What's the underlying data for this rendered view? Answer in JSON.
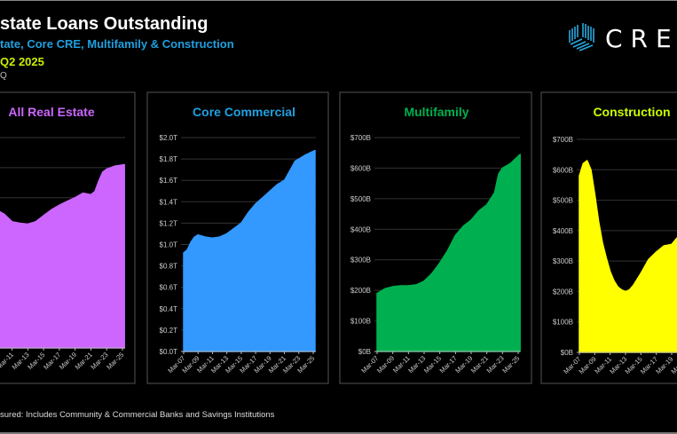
{
  "header": {
    "title": "state Loans Outstanding",
    "subtitle": "tate, Core CRE, Multifamily & Construction",
    "period": "Q2 2025",
    "source": "Q"
  },
  "logo": {
    "text": "CRED"
  },
  "footnote": "sured:  Includes Community & Commercial Banks and Savings Institutions",
  "colors": {
    "purple": "#cc66ff",
    "blue": "#3399ff",
    "green": "#00b050",
    "yellow": "#ffff00"
  },
  "chart_data": [
    {
      "type": "area",
      "title": "All Real Estate",
      "title_color": "#cc66ff",
      "fill": "#cc66ff",
      "ylabel": "",
      "ylim": [
        0,
        7
      ],
      "unit": "$T",
      "ytick_labels": [],
      "xtick_labels": [
        "Mar-07",
        "Mar-09",
        "Mar-11",
        "Mar-13",
        "Mar-15",
        "Mar-17",
        "Mar-19",
        "Mar-21",
        "Mar-23",
        "Mar-25"
      ],
      "x": [
        2007,
        2008,
        2009,
        2010,
        2011,
        2012,
        2013,
        2014,
        2015,
        2016,
        2017,
        2018,
        2019,
        2020,
        2021,
        2021.5,
        2022,
        2022.5,
        2023,
        2024,
        2025.25
      ],
      "values": [
        4.2,
        4.5,
        4.6,
        4.45,
        4.2,
        4.15,
        4.12,
        4.2,
        4.4,
        4.6,
        4.75,
        4.88,
        5.0,
        5.15,
        5.1,
        5.2,
        5.55,
        5.85,
        5.95,
        6.05,
        6.1
      ]
    },
    {
      "type": "area",
      "title": "Core Commercial",
      "title_color": "#1fa0e0",
      "fill": "#3399ff",
      "ylim": [
        0,
        2.0
      ],
      "unit": "$T",
      "ytick_labels": [
        "$0.0T",
        "$0.2T",
        "$0.4T",
        "$0.6T",
        "$0.8T",
        "$1.0T",
        "$1.2T",
        "$1.4T",
        "$1.6T",
        "$1.8T",
        "$2.0T"
      ],
      "xtick_labels": [
        "Mar-07",
        "Mar-09",
        "Mar-11",
        "Mar-13",
        "Mar-15",
        "Mar-17",
        "Mar-19",
        "Mar-21",
        "Mar-23",
        "Mar-25"
      ],
      "x": [
        2007,
        2007.5,
        2008,
        2008.5,
        2009,
        2010,
        2011,
        2012,
        2013,
        2014,
        2015,
        2016,
        2017,
        2018,
        2019,
        2020,
        2021,
        2022,
        2022.5,
        2023,
        2024,
        2025.25
      ],
      "values": [
        0.92,
        0.95,
        1.02,
        1.07,
        1.09,
        1.07,
        1.06,
        1.07,
        1.1,
        1.15,
        1.2,
        1.3,
        1.38,
        1.44,
        1.5,
        1.56,
        1.6,
        1.72,
        1.78,
        1.8,
        1.84,
        1.88
      ]
    },
    {
      "type": "area",
      "title": "Multifamily",
      "title_color": "#00b050",
      "fill": "#00b050",
      "ylim": [
        0,
        700
      ],
      "unit": "$B",
      "ytick_labels": [
        "$0B",
        "$100B",
        "$200B",
        "$300B",
        "$400B",
        "$500B",
        "$600B",
        "$700B"
      ],
      "xtick_labels": [
        "Mar-07",
        "Mar-09",
        "Mar-11",
        "Mar-13",
        "Mar-15",
        "Mar-17",
        "Mar-19",
        "Mar-21",
        "Mar-23",
        "Mar-25"
      ],
      "x": [
        2007,
        2008,
        2009,
        2010,
        2011,
        2012,
        2013,
        2014,
        2015,
        2016,
        2017,
        2018,
        2019,
        2020,
        2021,
        2022,
        2022.5,
        2023,
        2024,
        2025.25
      ],
      "values": [
        190,
        205,
        212,
        215,
        215,
        218,
        230,
        255,
        290,
        330,
        380,
        410,
        430,
        460,
        480,
        520,
        580,
        600,
        615,
        645
      ]
    },
    {
      "type": "area",
      "title": "Construction",
      "title_color": "#ccff00",
      "fill": "#ffff00",
      "ylim": [
        0,
        700
      ],
      "unit": "$B",
      "ytick_labels": [
        "$0B",
        "$100B",
        "$200B",
        "$300B",
        "$400B",
        "$500B",
        "$600B",
        "$700B"
      ],
      "xtick_labels": [
        "Mar-07",
        "Mar-09",
        "Mar-11",
        "Mar-13",
        "Mar-15",
        "Mar-17",
        "Mar-19",
        "Mar-21",
        "Mar-23",
        "Mar-25"
      ],
      "x": [
        2007,
        2007.5,
        2008,
        2008.5,
        2009,
        2009.5,
        2010,
        2010.5,
        2011,
        2011.5,
        2012,
        2012.5,
        2013,
        2013.5,
        2014,
        2015,
        2016,
        2017,
        2018,
        2019,
        2019.5,
        2020,
        2021,
        2022,
        2023,
        2024,
        2025.25
      ],
      "values": [
        580,
        620,
        630,
        600,
        520,
        430,
        360,
        310,
        265,
        235,
        215,
        205,
        200,
        205,
        220,
        260,
        305,
        330,
        350,
        355,
        370,
        385,
        400,
        450,
        490,
        495,
        485
      ]
    }
  ]
}
